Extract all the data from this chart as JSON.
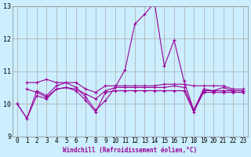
{
  "xlabel": "Windchill (Refroidissement éolien,°C)",
  "bg_color": "#cceeff",
  "line_color": "#990099",
  "grid_color": "#aaaaaa",
  "xlim": [
    -0.5,
    23.5
  ],
  "ylim": [
    9,
    13
  ],
  "yticks": [
    9,
    10,
    11,
    12,
    13
  ],
  "xticks": [
    0,
    1,
    2,
    3,
    4,
    5,
    6,
    7,
    8,
    9,
    10,
    11,
    12,
    13,
    14,
    15,
    16,
    17,
    18,
    19,
    20,
    21,
    22,
    23
  ],
  "lines": [
    {
      "x": [
        0,
        1,
        2,
        3,
        4,
        5,
        6,
        7,
        8,
        9,
        10,
        11,
        12,
        13,
        14,
        15,
        16,
        17,
        18,
        19,
        20,
        21,
        22,
        23
      ],
      "y": [
        10.0,
        9.55,
        10.4,
        10.25,
        10.55,
        10.65,
        10.5,
        10.2,
        9.8,
        10.1,
        10.5,
        11.05,
        12.45,
        12.75,
        13.1,
        11.15,
        11.95,
        10.7,
        9.8,
        10.45,
        10.4,
        10.5,
        10.4,
        10.4
      ]
    },
    {
      "x": [
        1,
        2,
        3,
        4,
        5,
        6,
        7,
        8,
        9,
        10,
        11,
        12,
        13,
        14,
        15,
        16,
        17,
        18,
        19,
        20,
        21,
        22,
        23
      ],
      "y": [
        10.65,
        10.65,
        10.75,
        10.65,
        10.65,
        10.65,
        10.45,
        10.35,
        10.55,
        10.55,
        10.55,
        10.55,
        10.55,
        10.55,
        10.6,
        10.6,
        10.6,
        10.55,
        10.55,
        10.55,
        10.55,
        10.45,
        10.45
      ]
    },
    {
      "x": [
        1,
        2,
        3,
        4,
        5,
        6,
        7,
        8,
        9,
        10,
        11,
        12,
        13,
        14,
        15,
        16,
        17,
        18,
        19,
        20,
        21,
        22,
        23
      ],
      "y": [
        10.45,
        10.35,
        10.2,
        10.45,
        10.5,
        10.45,
        10.3,
        10.15,
        10.4,
        10.5,
        10.5,
        10.5,
        10.5,
        10.5,
        10.5,
        10.55,
        10.5,
        9.8,
        10.4,
        10.4,
        10.4,
        10.4,
        10.4
      ]
    },
    {
      "x": [
        0,
        1,
        2,
        3,
        4,
        5,
        6,
        7,
        8,
        9,
        10,
        11,
        12,
        13,
        14,
        15,
        16,
        17,
        18,
        19,
        20,
        21,
        22,
        23
      ],
      "y": [
        10.0,
        9.55,
        10.25,
        10.15,
        10.45,
        10.5,
        10.4,
        10.1,
        9.75,
        10.35,
        10.4,
        10.4,
        10.4,
        10.4,
        10.4,
        10.4,
        10.4,
        10.4,
        9.75,
        10.35,
        10.35,
        10.35,
        10.35,
        10.35
      ]
    }
  ],
  "tick_fontsize": 5.5,
  "xlabel_fontsize": 5.5
}
